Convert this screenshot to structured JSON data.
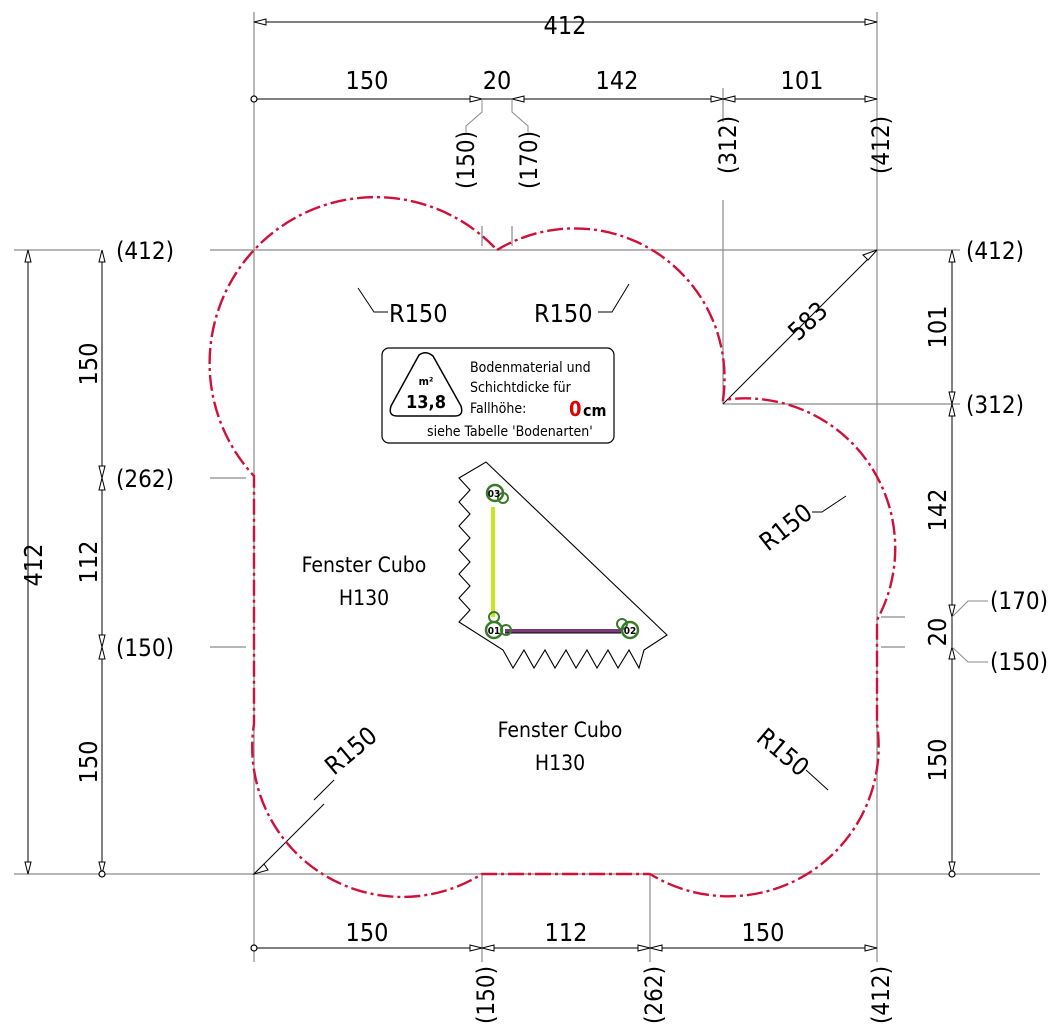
{
  "drawing": {
    "overall_width": "412",
    "overall_height": "412",
    "top_dims": [
      "150",
      "20",
      "142",
      "101"
    ],
    "top_refs": [
      "(150)",
      "(170)",
      "(312)",
      "(412)"
    ],
    "bottom_dims": [
      "150",
      "112",
      "150"
    ],
    "bottom_refs": [
      "(150)",
      "(262)",
      "(412)"
    ],
    "left_dims": [
      "150",
      "112",
      "150"
    ],
    "left_refs": [
      "(412)",
      "(262)",
      "(150)"
    ],
    "right_dims": [
      "101",
      "142",
      "20",
      "150"
    ],
    "right_refs": [
      "(412)",
      "(312)",
      "(170)",
      "(150)"
    ],
    "radius_labels": [
      "R150",
      "R150",
      "R150",
      "R150",
      "R150"
    ],
    "diagonal_dim": "583",
    "labels": {
      "window_1_line1": "Fenster Cubo",
      "window_1_line2": "H130",
      "window_2_line1": "Fenster Cubo",
      "window_2_line2": "H130"
    },
    "info_box": {
      "area_unit": "m²",
      "area_value": "13,8",
      "line1": "Bodenmaterial und",
      "line2": "Schichtdicke für",
      "line3": "Fallhöhe:",
      "fall_height_value": "0",
      "fall_height_unit": "cm",
      "line4": "siehe Tabelle 'Bodenarten'"
    },
    "post_labels": [
      "03",
      "01",
      "02"
    ],
    "colors": {
      "outline": "#d0103a",
      "post": "#3a7a2a",
      "beam_vertical": "#c8e61e",
      "beam_horizontal": "#7a3a7a",
      "fall_height_marker": "#e00000"
    }
  }
}
